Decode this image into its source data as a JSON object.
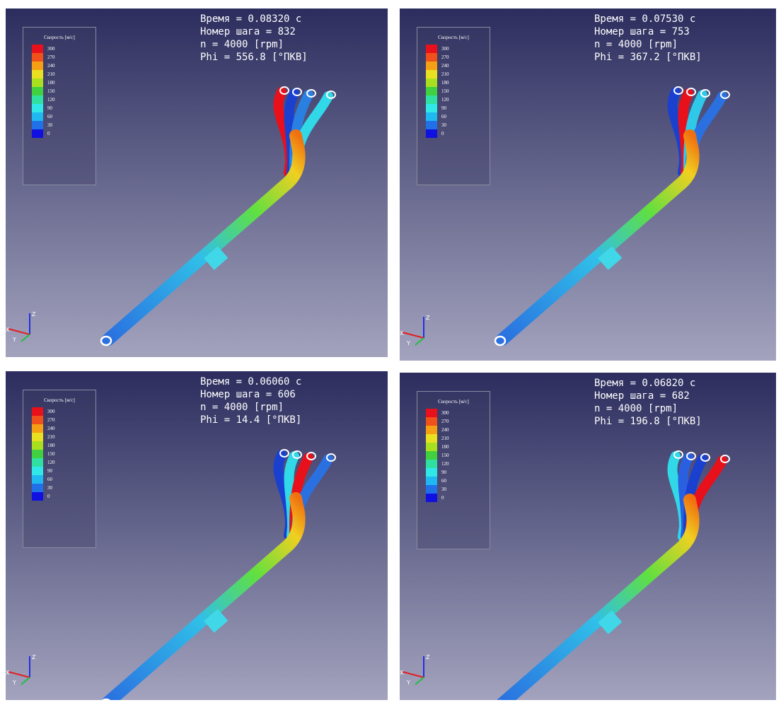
{
  "legend": {
    "title": "Скорость [м/с]",
    "items": [
      {
        "label": "300",
        "color": "#e8101a"
      },
      {
        "label": "270",
        "color": "#f0501a"
      },
      {
        "label": "240",
        "color": "#f5a014"
      },
      {
        "label": "210",
        "color": "#e8e020"
      },
      {
        "label": "180",
        "color": "#a8e020"
      },
      {
        "label": "150",
        "color": "#40d040"
      },
      {
        "label": "120",
        "color": "#30e0a0"
      },
      {
        "label": "90",
        "color": "#30e8e8"
      },
      {
        "label": "60",
        "color": "#20b8f0"
      },
      {
        "label": "30",
        "color": "#2070e8"
      },
      {
        "label": "0",
        "color": "#1010e0"
      }
    ]
  },
  "axes": {
    "z": "Z",
    "x": "X",
    "y": "Y"
  },
  "panels": [
    {
      "time": "Время = 0.08320 с",
      "step": "Номер шага = 832",
      "n": "n = 4000 [rpm]",
      "phi": "Phi = 556.8 [°ПКВ]"
    },
    {
      "time": "Время = 0.07530 с",
      "step": "Номер шага = 753",
      "n": "n = 4000 [rpm]",
      "phi": "Phi = 367.2 [°ПКВ]"
    },
    {
      "time": "Время = 0.06060 с",
      "step": "Номер шага = 606",
      "n": "n = 4000 [rpm]",
      "phi": "Phi = 14.4 [°ПКВ]"
    },
    {
      "time": "Время = 0.06820 с",
      "step": "Номер шага = 682",
      "n": "n = 4000 [rpm]",
      "phi": "Phi = 196.8 [°ПКВ]"
    }
  ]
}
